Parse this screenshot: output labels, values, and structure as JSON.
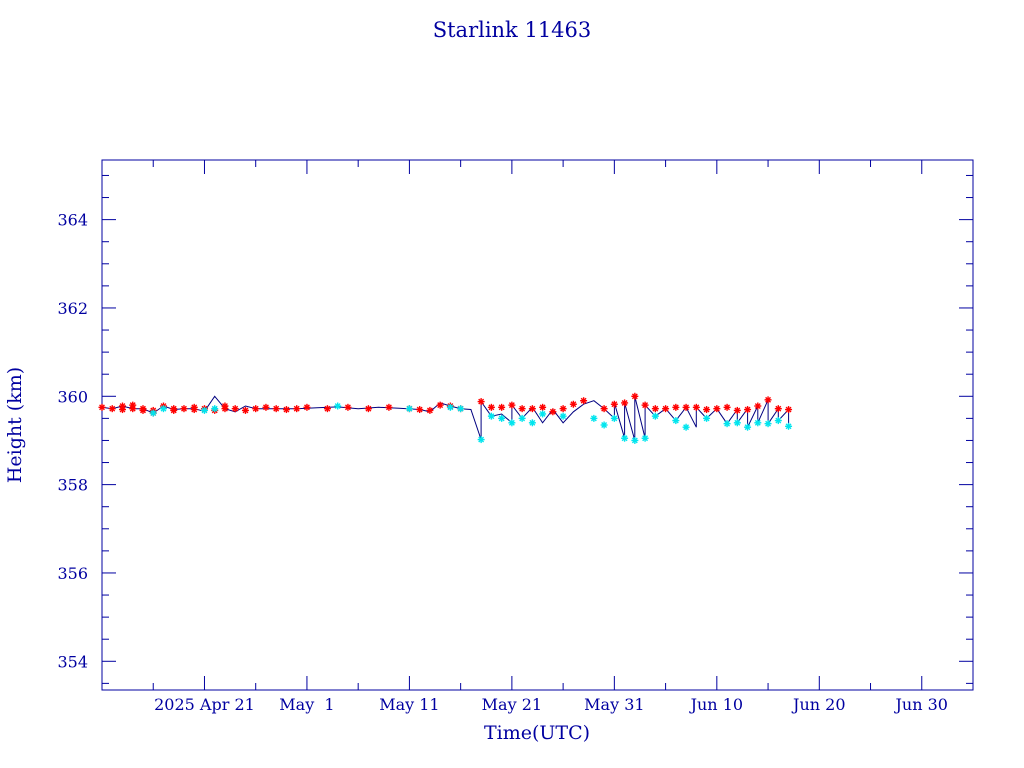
{
  "chart_data": {
    "type": "line",
    "title": "Starlink 11463",
    "xlabel": "Time(UTC)",
    "ylabel": "Height (km)",
    "x_ticks": [
      {
        "date": "2025-04-21",
        "label": "2025 Apr 21"
      },
      {
        "date": "2025-05-01",
        "label": "May  1"
      },
      {
        "date": "2025-05-11",
        "label": "May 11"
      },
      {
        "date": "2025-05-21",
        "label": "May 21"
      },
      {
        "date": "2025-05-31",
        "label": "May 31"
      },
      {
        "date": "2025-06-10",
        "label": "Jun 10"
      },
      {
        "date": "2025-06-20",
        "label": "Jun 20"
      },
      {
        "date": "2025-06-30",
        "label": "Jun 30"
      }
    ],
    "y_ticks": [
      354,
      356,
      358,
      360,
      362,
      364
    ],
    "xlim": [
      "2025-04-11",
      "2025-07-05"
    ],
    "ylim": [
      353.35,
      365.35
    ],
    "grid": false,
    "colors": {
      "axis": "#0000a0",
      "line": "#000080",
      "apogee_marker": "#ff0000",
      "perigee_marker": "#00e5ee"
    },
    "series": [
      {
        "marker": "star",
        "marker_color": "#ff0000",
        "points": [
          [
            "2025-04-11",
            359.75
          ],
          [
            "2025-04-12",
            359.72
          ],
          [
            "2025-04-13",
            359.78
          ],
          [
            "2025-04-13",
            359.7
          ],
          [
            "2025-04-14",
            359.72
          ],
          [
            "2025-04-14",
            359.8
          ],
          [
            "2025-04-15",
            359.72
          ],
          [
            "2025-04-15",
            359.68
          ],
          [
            "2025-04-16",
            359.62
          ],
          [
            "2025-04-16",
            359.68
          ],
          [
            "2025-04-17",
            359.78
          ],
          [
            "2025-04-18",
            359.72
          ],
          [
            "2025-04-18",
            359.68
          ],
          [
            "2025-04-19",
            359.72
          ],
          [
            "2025-04-20",
            359.75
          ],
          [
            "2025-04-20",
            359.7
          ],
          [
            "2025-04-21",
            359.72
          ],
          [
            "2025-04-22",
            359.68
          ],
          [
            "2025-04-23",
            359.72
          ],
          [
            "2025-04-23",
            359.78
          ],
          [
            "2025-04-24",
            359.72
          ],
          [
            "2025-04-25",
            359.68
          ],
          [
            "2025-04-26",
            359.72
          ],
          [
            "2025-04-27",
            359.75
          ],
          [
            "2025-04-28",
            359.72
          ],
          [
            "2025-04-29",
            359.7
          ],
          [
            "2025-04-30",
            359.72
          ],
          [
            "2025-05-01",
            359.75
          ],
          [
            "2025-05-03",
            359.72
          ],
          [
            "2025-05-05",
            359.75
          ],
          [
            "2025-05-07",
            359.72
          ],
          [
            "2025-05-09",
            359.75
          ],
          [
            "2025-05-11",
            359.72
          ],
          [
            "2025-05-12",
            359.7
          ],
          [
            "2025-05-13",
            359.68
          ],
          [
            "2025-05-14",
            359.8
          ],
          [
            "2025-05-15",
            359.78
          ],
          [
            "2025-05-16",
            359.72
          ],
          [
            "2025-05-18",
            359.88
          ],
          [
            "2025-05-19",
            359.75
          ],
          [
            "2025-05-20",
            359.75
          ],
          [
            "2025-05-21",
            359.8
          ],
          [
            "2025-05-22",
            359.72
          ],
          [
            "2025-05-23",
            359.72
          ],
          [
            "2025-05-24",
            359.75
          ],
          [
            "2025-05-25",
            359.65
          ],
          [
            "2025-05-26",
            359.72
          ],
          [
            "2025-05-27",
            359.82
          ],
          [
            "2025-05-28",
            359.9
          ],
          [
            "2025-05-30",
            359.72
          ],
          [
            "2025-05-31",
            359.82
          ],
          [
            "2025-06-01",
            359.85
          ],
          [
            "2025-06-02",
            360.0
          ],
          [
            "2025-06-03",
            359.8
          ],
          [
            "2025-06-04",
            359.72
          ],
          [
            "2025-06-05",
            359.72
          ],
          [
            "2025-06-06",
            359.75
          ],
          [
            "2025-06-07",
            359.75
          ],
          [
            "2025-06-08",
            359.75
          ],
          [
            "2025-06-09",
            359.7
          ],
          [
            "2025-06-10",
            359.72
          ],
          [
            "2025-06-11",
            359.75
          ],
          [
            "2025-06-12",
            359.68
          ],
          [
            "2025-06-13",
            359.7
          ],
          [
            "2025-06-14",
            359.78
          ],
          [
            "2025-06-15",
            359.92
          ],
          [
            "2025-06-16",
            359.72
          ],
          [
            "2025-06-17",
            359.7
          ]
        ]
      },
      {
        "marker": "star",
        "marker_color": "#00e5ee",
        "points": [
          [
            "2025-04-16",
            359.62
          ],
          [
            "2025-04-17",
            359.72
          ],
          [
            "2025-04-21",
            359.68
          ],
          [
            "2025-04-22",
            359.72
          ],
          [
            "2025-05-04",
            359.78
          ],
          [
            "2025-05-11",
            359.72
          ],
          [
            "2025-05-15",
            359.75
          ],
          [
            "2025-05-16",
            359.72
          ],
          [
            "2025-05-18",
            359.02
          ],
          [
            "2025-05-19",
            359.55
          ],
          [
            "2025-05-20",
            359.5
          ],
          [
            "2025-05-21",
            359.4
          ],
          [
            "2025-05-22",
            359.5
          ],
          [
            "2025-05-23",
            359.4
          ],
          [
            "2025-05-24",
            359.6
          ],
          [
            "2025-05-26",
            359.55
          ],
          [
            "2025-05-29",
            359.5
          ],
          [
            "2025-05-30",
            359.35
          ],
          [
            "2025-05-31",
            359.5
          ],
          [
            "2025-06-01",
            359.05
          ],
          [
            "2025-06-02",
            359.0
          ],
          [
            "2025-06-03",
            359.05
          ],
          [
            "2025-06-04",
            359.55
          ],
          [
            "2025-06-06",
            359.45
          ],
          [
            "2025-06-07",
            359.3
          ],
          [
            "2025-06-09",
            359.5
          ],
          [
            "2025-06-11",
            359.38
          ],
          [
            "2025-06-12",
            359.4
          ],
          [
            "2025-06-13",
            359.3
          ],
          [
            "2025-06-14",
            359.4
          ],
          [
            "2025-06-15",
            359.38
          ],
          [
            "2025-06-16",
            359.45
          ],
          [
            "2025-06-17",
            359.32
          ]
        ]
      }
    ],
    "line": [
      [
        "2025-04-11",
        359.75
      ],
      [
        "2025-04-12",
        359.72
      ],
      [
        "2025-04-13",
        359.78
      ],
      [
        "2025-04-14",
        359.72
      ],
      [
        "2025-04-15",
        359.72
      ],
      [
        "2025-04-16",
        359.62
      ],
      [
        "2025-04-17",
        359.78
      ],
      [
        "2025-04-18",
        359.7
      ],
      [
        "2025-04-19",
        359.72
      ],
      [
        "2025-04-20",
        359.72
      ],
      [
        "2025-04-21",
        359.66
      ],
      [
        "2025-04-22",
        360.0
      ],
      [
        "2025-04-23",
        359.72
      ],
      [
        "2025-04-24",
        359.65
      ],
      [
        "2025-04-25",
        359.78
      ],
      [
        "2025-04-26",
        359.72
      ],
      [
        "2025-04-28",
        359.72
      ],
      [
        "2025-04-30",
        359.72
      ],
      [
        "2025-05-02",
        359.74
      ],
      [
        "2025-05-04",
        359.76
      ],
      [
        "2025-05-06",
        359.72
      ],
      [
        "2025-05-08",
        359.75
      ],
      [
        "2025-05-10",
        359.73
      ],
      [
        "2025-05-12",
        359.7
      ],
      [
        "2025-05-13",
        359.65
      ],
      [
        "2025-05-14",
        359.85
      ],
      [
        "2025-05-15",
        359.78
      ],
      [
        "2025-05-16",
        359.72
      ],
      [
        "2025-05-17",
        359.7
      ],
      [
        "2025-05-18",
        359.02
      ],
      [
        "2025-05-18",
        359.88
      ],
      [
        "2025-05-19",
        359.55
      ],
      [
        "2025-05-20",
        359.6
      ],
      [
        "2025-05-21",
        359.4
      ],
      [
        "2025-05-21",
        359.8
      ],
      [
        "2025-05-22",
        359.5
      ],
      [
        "2025-05-23",
        359.75
      ],
      [
        "2025-05-24",
        359.4
      ],
      [
        "2025-05-25",
        359.7
      ],
      [
        "2025-05-26",
        359.4
      ],
      [
        "2025-05-27",
        359.65
      ],
      [
        "2025-05-28",
        359.82
      ],
      [
        "2025-05-29",
        359.9
      ],
      [
        "2025-05-30",
        359.72
      ],
      [
        "2025-05-31",
        359.5
      ],
      [
        "2025-05-31",
        359.85
      ],
      [
        "2025-06-01",
        359.05
      ],
      [
        "2025-06-01",
        359.85
      ],
      [
        "2025-06-02",
        359.0
      ],
      [
        "2025-06-02",
        360.0
      ],
      [
        "2025-06-03",
        359.05
      ],
      [
        "2025-06-03",
        359.8
      ],
      [
        "2025-06-04",
        359.55
      ],
      [
        "2025-06-05",
        359.72
      ],
      [
        "2025-06-06",
        359.45
      ],
      [
        "2025-06-07",
        359.75
      ],
      [
        "2025-06-08",
        359.3
      ],
      [
        "2025-06-08",
        359.75
      ],
      [
        "2025-06-09",
        359.5
      ],
      [
        "2025-06-10",
        359.72
      ],
      [
        "2025-06-11",
        359.38
      ],
      [
        "2025-06-12",
        359.7
      ],
      [
        "2025-06-12",
        359.4
      ],
      [
        "2025-06-13",
        359.72
      ],
      [
        "2025-06-13",
        359.3
      ],
      [
        "2025-06-14",
        359.78
      ],
      [
        "2025-06-14",
        359.4
      ],
      [
        "2025-06-15",
        359.92
      ],
      [
        "2025-06-15",
        359.38
      ],
      [
        "2025-06-16",
        359.72
      ],
      [
        "2025-06-16",
        359.45
      ],
      [
        "2025-06-17",
        359.7
      ],
      [
        "2025-06-17",
        359.32
      ]
    ]
  }
}
